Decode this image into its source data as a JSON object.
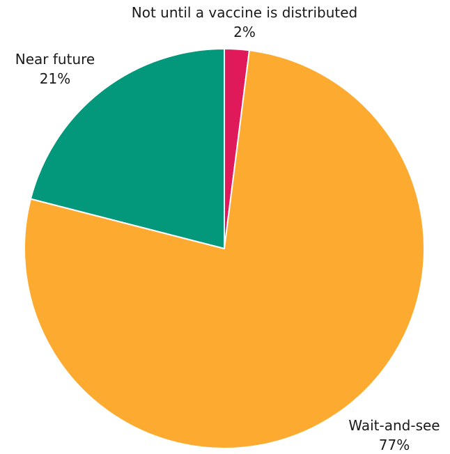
{
  "chart_data": {
    "type": "pie",
    "title": "",
    "slices": [
      {
        "label": "Not until a vaccine is distributed",
        "value": 2,
        "value_label": "2%",
        "color": "#e0195a"
      },
      {
        "label": "Wait-and-see",
        "value": 77,
        "value_label": "77%",
        "color": "#fdab30"
      },
      {
        "label": "Near future",
        "value": 21,
        "value_label": "21%",
        "color": "#03987b"
      }
    ],
    "start": "top, clockwise",
    "legend": "none"
  }
}
